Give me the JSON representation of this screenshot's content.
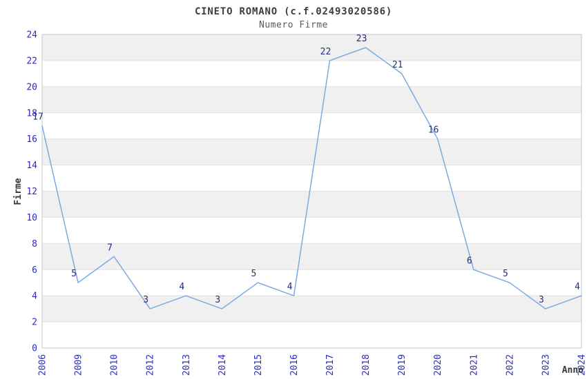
{
  "header": {
    "title": "CINETO ROMANO (c.f.02493020586)",
    "subtitle": "Numero Firme"
  },
  "chart_data": {
    "type": "line",
    "title": "CINETO ROMANO (c.f.02493020586)",
    "subtitle": "Numero Firme",
    "xlabel": "Anno",
    "ylabel": "Firme",
    "categories": [
      "2006",
      "2009",
      "2010",
      "2012",
      "2013",
      "2014",
      "2015",
      "2016",
      "2017",
      "2018",
      "2019",
      "2020",
      "2021",
      "2022",
      "2023",
      "2024"
    ],
    "values": [
      17,
      5,
      7,
      3,
      4,
      3,
      5,
      4,
      22,
      23,
      21,
      16,
      6,
      5,
      3,
      4
    ],
    "ylim": [
      0,
      24
    ],
    "ytick_step": 2,
    "yticks": [
      0,
      2,
      4,
      6,
      8,
      10,
      12,
      14,
      16,
      18,
      20,
      22,
      24
    ],
    "grid": "horizontal-bands-alternating",
    "legend_position": "none",
    "point_labels_visible": true,
    "colors": {
      "line": "#7aaade",
      "tick_labels": "#2a2acc",
      "point_labels": "#2a2a85",
      "band_gray": "#f0f0f0",
      "band_white": "#ffffff",
      "grid_line": "#e1e1e1",
      "plot_border": "#c8c8c8",
      "title": "#3d3d3d",
      "subtitle": "#5a5a5a",
      "axis_title": "#363636",
      "background": "#ffffff"
    }
  }
}
